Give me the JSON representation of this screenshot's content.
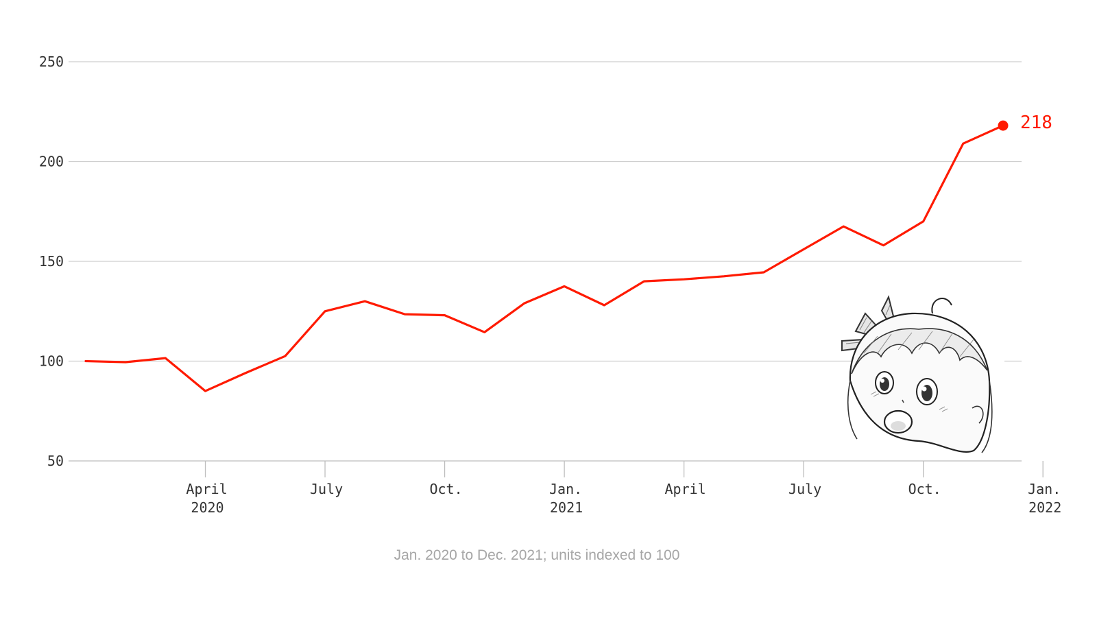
{
  "chart_data": {
    "type": "line",
    "title": "",
    "xlabel": "",
    "ylabel": "",
    "caption": "Jan. 2020 to Dec. 2021; units indexed to 100",
    "ylim": [
      50,
      250
    ],
    "yticks": [
      50,
      100,
      150,
      200,
      250
    ],
    "grid": true,
    "xticks": [
      {
        "date": "2020-04",
        "line1": "April",
        "line2": "2020"
      },
      {
        "date": "2020-07",
        "line1": "July",
        "line2": ""
      },
      {
        "date": "2020-10",
        "line1": "Oct.",
        "line2": ""
      },
      {
        "date": "2021-01",
        "line1": "Jan.",
        "line2": "2021"
      },
      {
        "date": "2021-04",
        "line1": "April",
        "line2": ""
      },
      {
        "date": "2021-07",
        "line1": "July",
        "line2": ""
      },
      {
        "date": "2021-10",
        "line1": "Oct.",
        "line2": ""
      },
      {
        "date": "2022-01",
        "line1": "Jan.",
        "line2": "2022"
      }
    ],
    "series": [
      {
        "color": "#ff1a00",
        "x": [
          "2020-01",
          "2020-02",
          "2020-03",
          "2020-04",
          "2020-05",
          "2020-06",
          "2020-07",
          "2020-08",
          "2020-09",
          "2020-10",
          "2020-11",
          "2020-12",
          "2021-01",
          "2021-02",
          "2021-03",
          "2021-04",
          "2021-05",
          "2021-06",
          "2021-07",
          "2021-08",
          "2021-09",
          "2021-10",
          "2021-11",
          "2021-12"
        ],
        "values": [
          100,
          99.5,
          101.5,
          85,
          94,
          102.5,
          125,
          130,
          123.5,
          123,
          114.5,
          129,
          137.5,
          128,
          140,
          141,
          142.5,
          144.5,
          156,
          167.5,
          158,
          170,
          209,
          218
        ],
        "end_label": "218"
      }
    ]
  },
  "illustration": {
    "icon": "surprised-anime-girl-sketch-icon"
  }
}
